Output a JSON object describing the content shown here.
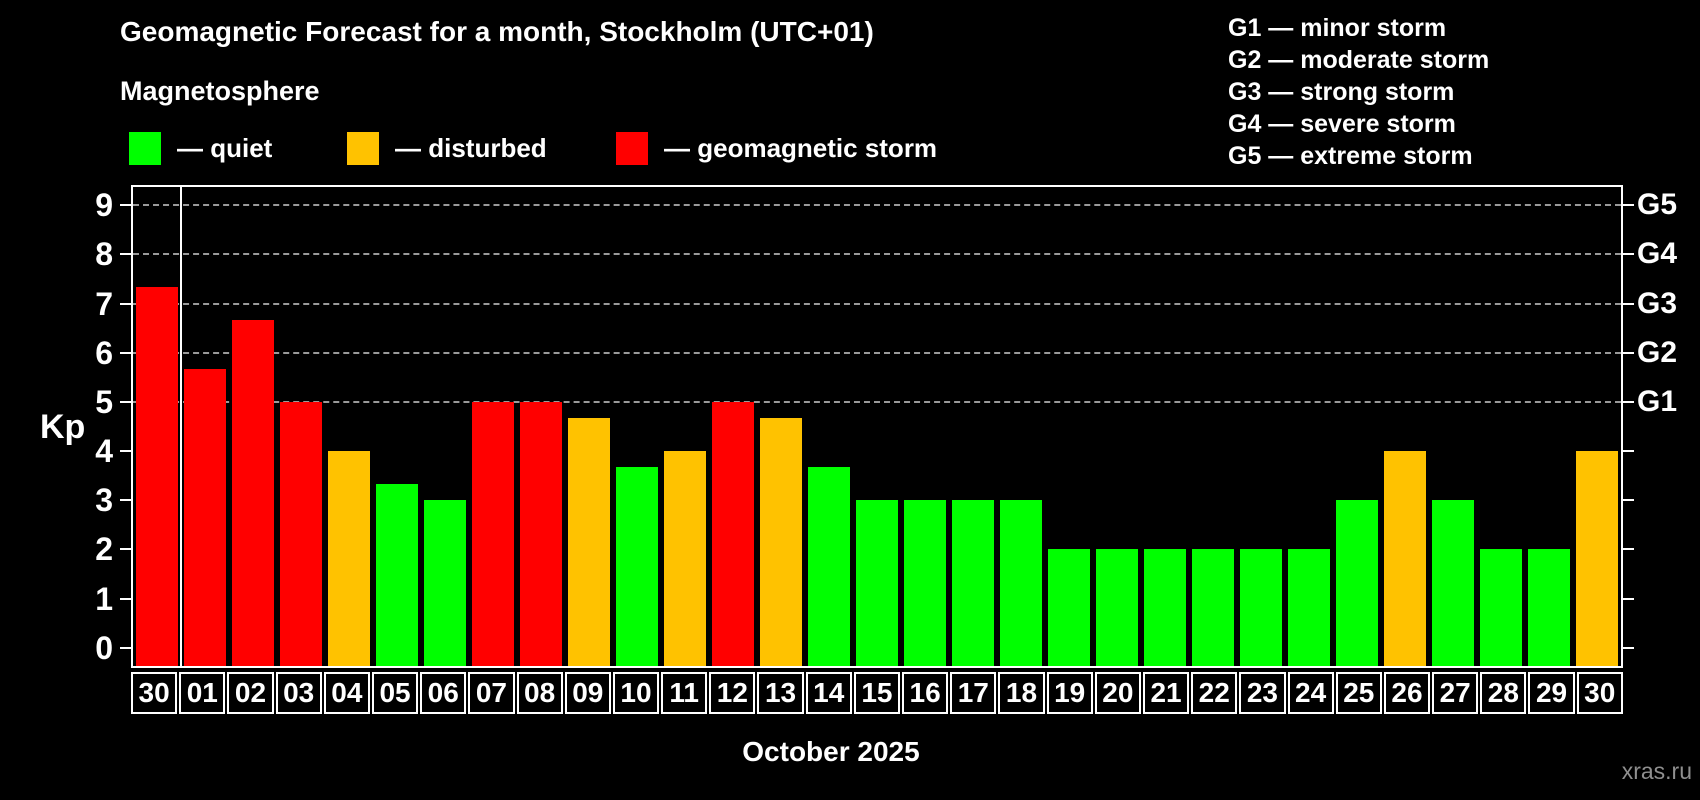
{
  "header": {
    "title": "Geomagnetic Forecast for a month, Stockholm (UTC+01)",
    "subtitle": "Magnetosphere"
  },
  "legend": {
    "items": [
      {
        "label": "— quiet",
        "status": "quiet",
        "color": "#00ff00"
      },
      {
        "label": "— disturbed",
        "status": "disturbed",
        "color": "#ffc200"
      },
      {
        "label": "— geomagnetic storm",
        "status": "storm",
        "color": "#ff0000"
      }
    ]
  },
  "g_legend": {
    "items": [
      "G1 — minor storm",
      "G2 — moderate storm",
      "G3 — strong storm",
      "G4 — severe storm",
      "G5 — extreme storm"
    ]
  },
  "chart_data": {
    "type": "bar",
    "title": "Geomagnetic Forecast for a month, Stockholm (UTC+01)",
    "subtitle": "Magnetosphere",
    "xlabel": "October 2025",
    "ylabel": "Kp",
    "ylim": [
      -0.37,
      9.37
    ],
    "yticks": [
      0,
      1,
      2,
      3,
      4,
      5,
      6,
      7,
      8,
      9
    ],
    "gridlines": [
      5,
      6,
      7,
      8,
      9
    ],
    "grid": "dashed",
    "legend_position": "top",
    "right_axis_labels": [
      {
        "label": "G1",
        "value": 5
      },
      {
        "label": "G2",
        "value": 6
      },
      {
        "label": "G3",
        "value": 7
      },
      {
        "label": "G4",
        "value": 8
      },
      {
        "label": "G5",
        "value": 9
      }
    ],
    "categories": [
      "30",
      "01",
      "02",
      "03",
      "04",
      "05",
      "06",
      "07",
      "08",
      "09",
      "10",
      "11",
      "12",
      "13",
      "14",
      "15",
      "16",
      "17",
      "18",
      "19",
      "20",
      "21",
      "22",
      "23",
      "24",
      "25",
      "26",
      "27",
      "28",
      "29",
      "30"
    ],
    "values": [
      7.33,
      5.67,
      6.67,
      5,
      4,
      3.33,
      3,
      5,
      5,
      4.67,
      3.67,
      4,
      5,
      4.67,
      3.67,
      3,
      3,
      3,
      3,
      2,
      2,
      2,
      2,
      2,
      2,
      3,
      4,
      3,
      2,
      2,
      4
    ],
    "statuses": [
      "storm",
      "storm",
      "storm",
      "storm",
      "disturbed",
      "quiet",
      "quiet",
      "storm",
      "storm",
      "disturbed",
      "quiet",
      "disturbed",
      "storm",
      "disturbed",
      "quiet",
      "quiet",
      "quiet",
      "quiet",
      "quiet",
      "quiet",
      "quiet",
      "quiet",
      "quiet",
      "quiet",
      "quiet",
      "quiet",
      "disturbed",
      "quiet",
      "quiet",
      "quiet",
      "disturbed"
    ],
    "colors": {
      "quiet": "#00ff00",
      "disturbed": "#ffc200",
      "storm": "#ff0000"
    },
    "separator_after_index": 0
  },
  "footer": {
    "month_label": "October 2025",
    "watermark": "xras.ru"
  }
}
